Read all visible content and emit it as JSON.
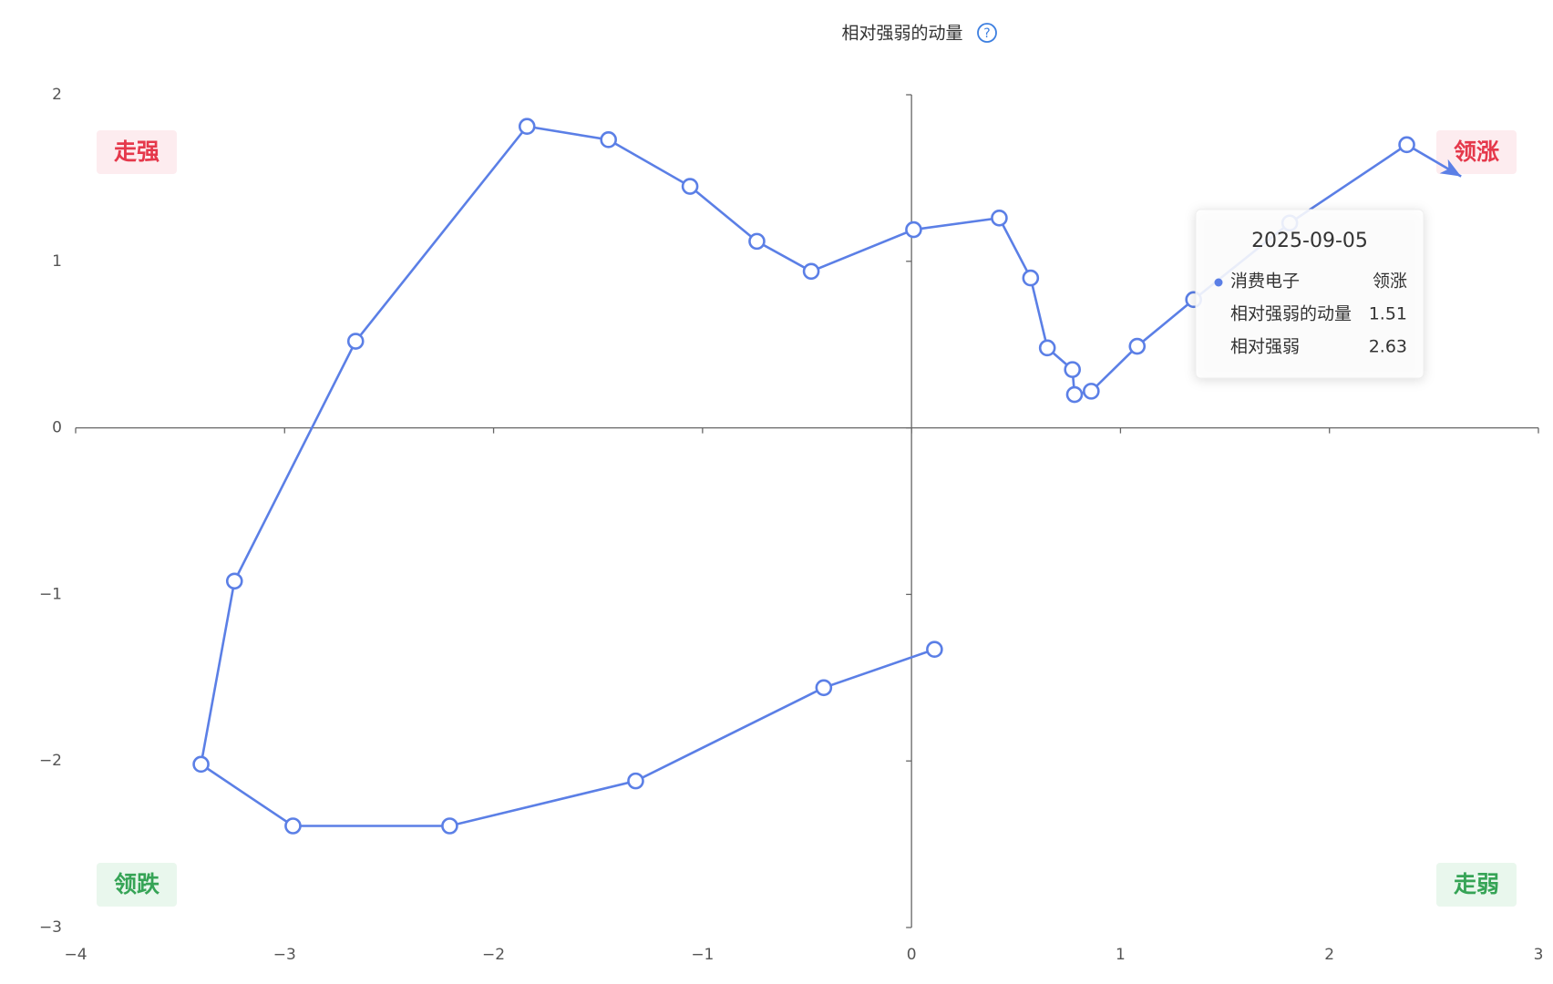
{
  "chart_data": {
    "type": "line",
    "title": "相对强弱的动量",
    "x": [
      0.11,
      -0.42,
      -1.32,
      -2.21,
      -2.96,
      -3.4,
      -3.24,
      -2.66,
      -1.84,
      -1.45,
      -1.06,
      -0.74,
      -0.48,
      0.01,
      0.42,
      0.57,
      0.65,
      0.77,
      0.78,
      0.86,
      1.08,
      1.35,
      1.81,
      2.37,
      2.63
    ],
    "series": [
      {
        "name": "消费电子",
        "color": "#5b7fe6",
        "values": [
          -1.33,
          -1.56,
          -2.12,
          -2.39,
          -2.39,
          -2.02,
          -0.92,
          0.52,
          1.81,
          1.73,
          1.45,
          1.12,
          0.94,
          1.19,
          1.26,
          0.9,
          0.48,
          0.35,
          0.2,
          0.22,
          0.49,
          0.77,
          1.23,
          1.7,
          1.51
        ]
      }
    ],
    "xlim": [
      -4,
      3
    ],
    "xticks": [
      {
        "value": -4,
        "label": "−4"
      },
      {
        "value": -3,
        "label": "−3"
      },
      {
        "value": -2,
        "label": "−2"
      },
      {
        "value": -1,
        "label": "−1"
      },
      0,
      1,
      2,
      3
    ],
    "ylim": [
      -3,
      2
    ],
    "yticks": [
      {
        "value": -3,
        "label": "−3"
      },
      {
        "value": -2,
        "label": "−2"
      },
      {
        "value": -1,
        "label": "−1"
      },
      0,
      1,
      2
    ],
    "quadrants": {
      "top_left": "走强",
      "top_right": "领涨",
      "bottom_left": "领跌",
      "bottom_right": "走弱"
    },
    "tooltip": {
      "date": "2025-09-05",
      "quadrant": "领涨",
      "rows": [
        {
          "label": "相对强弱的动量"
        },
        {
          "label": "相对强弱"
        }
      ]
    }
  }
}
